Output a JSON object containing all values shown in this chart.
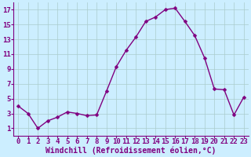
{
  "x": [
    0,
    1,
    2,
    3,
    4,
    5,
    6,
    7,
    8,
    9,
    10,
    11,
    12,
    13,
    14,
    15,
    16,
    17,
    18,
    19,
    20,
    21,
    22,
    23
  ],
  "y": [
    4,
    3,
    1,
    2,
    2.5,
    3.2,
    3,
    2.7,
    2.8,
    6,
    9.3,
    11.5,
    13.3,
    15.4,
    16,
    17,
    17.2,
    15.4,
    13.5,
    10.5,
    6.3,
    6.2,
    2.8,
    5.2
  ],
  "line_color": "#800080",
  "marker_color": "#800080",
  "bg_color": "#cceeff",
  "grid_color": "#aacccc",
  "xlabel": "Windchill (Refroidissement éolien,°C)",
  "ylabel_ticks": [
    1,
    3,
    5,
    7,
    9,
    11,
    13,
    15,
    17
  ],
  "xlim": [
    -0.5,
    23.5
  ],
  "ylim": [
    0,
    18
  ],
  "xticks": [
    0,
    1,
    2,
    3,
    4,
    5,
    6,
    7,
    8,
    9,
    10,
    11,
    12,
    13,
    14,
    15,
    16,
    17,
    18,
    19,
    20,
    21,
    22,
    23
  ],
  "font_color": "#800080",
  "marker_size": 2.5,
  "line_width": 1.0,
  "tick_label_size": 6.5,
  "xlabel_size": 7.0
}
